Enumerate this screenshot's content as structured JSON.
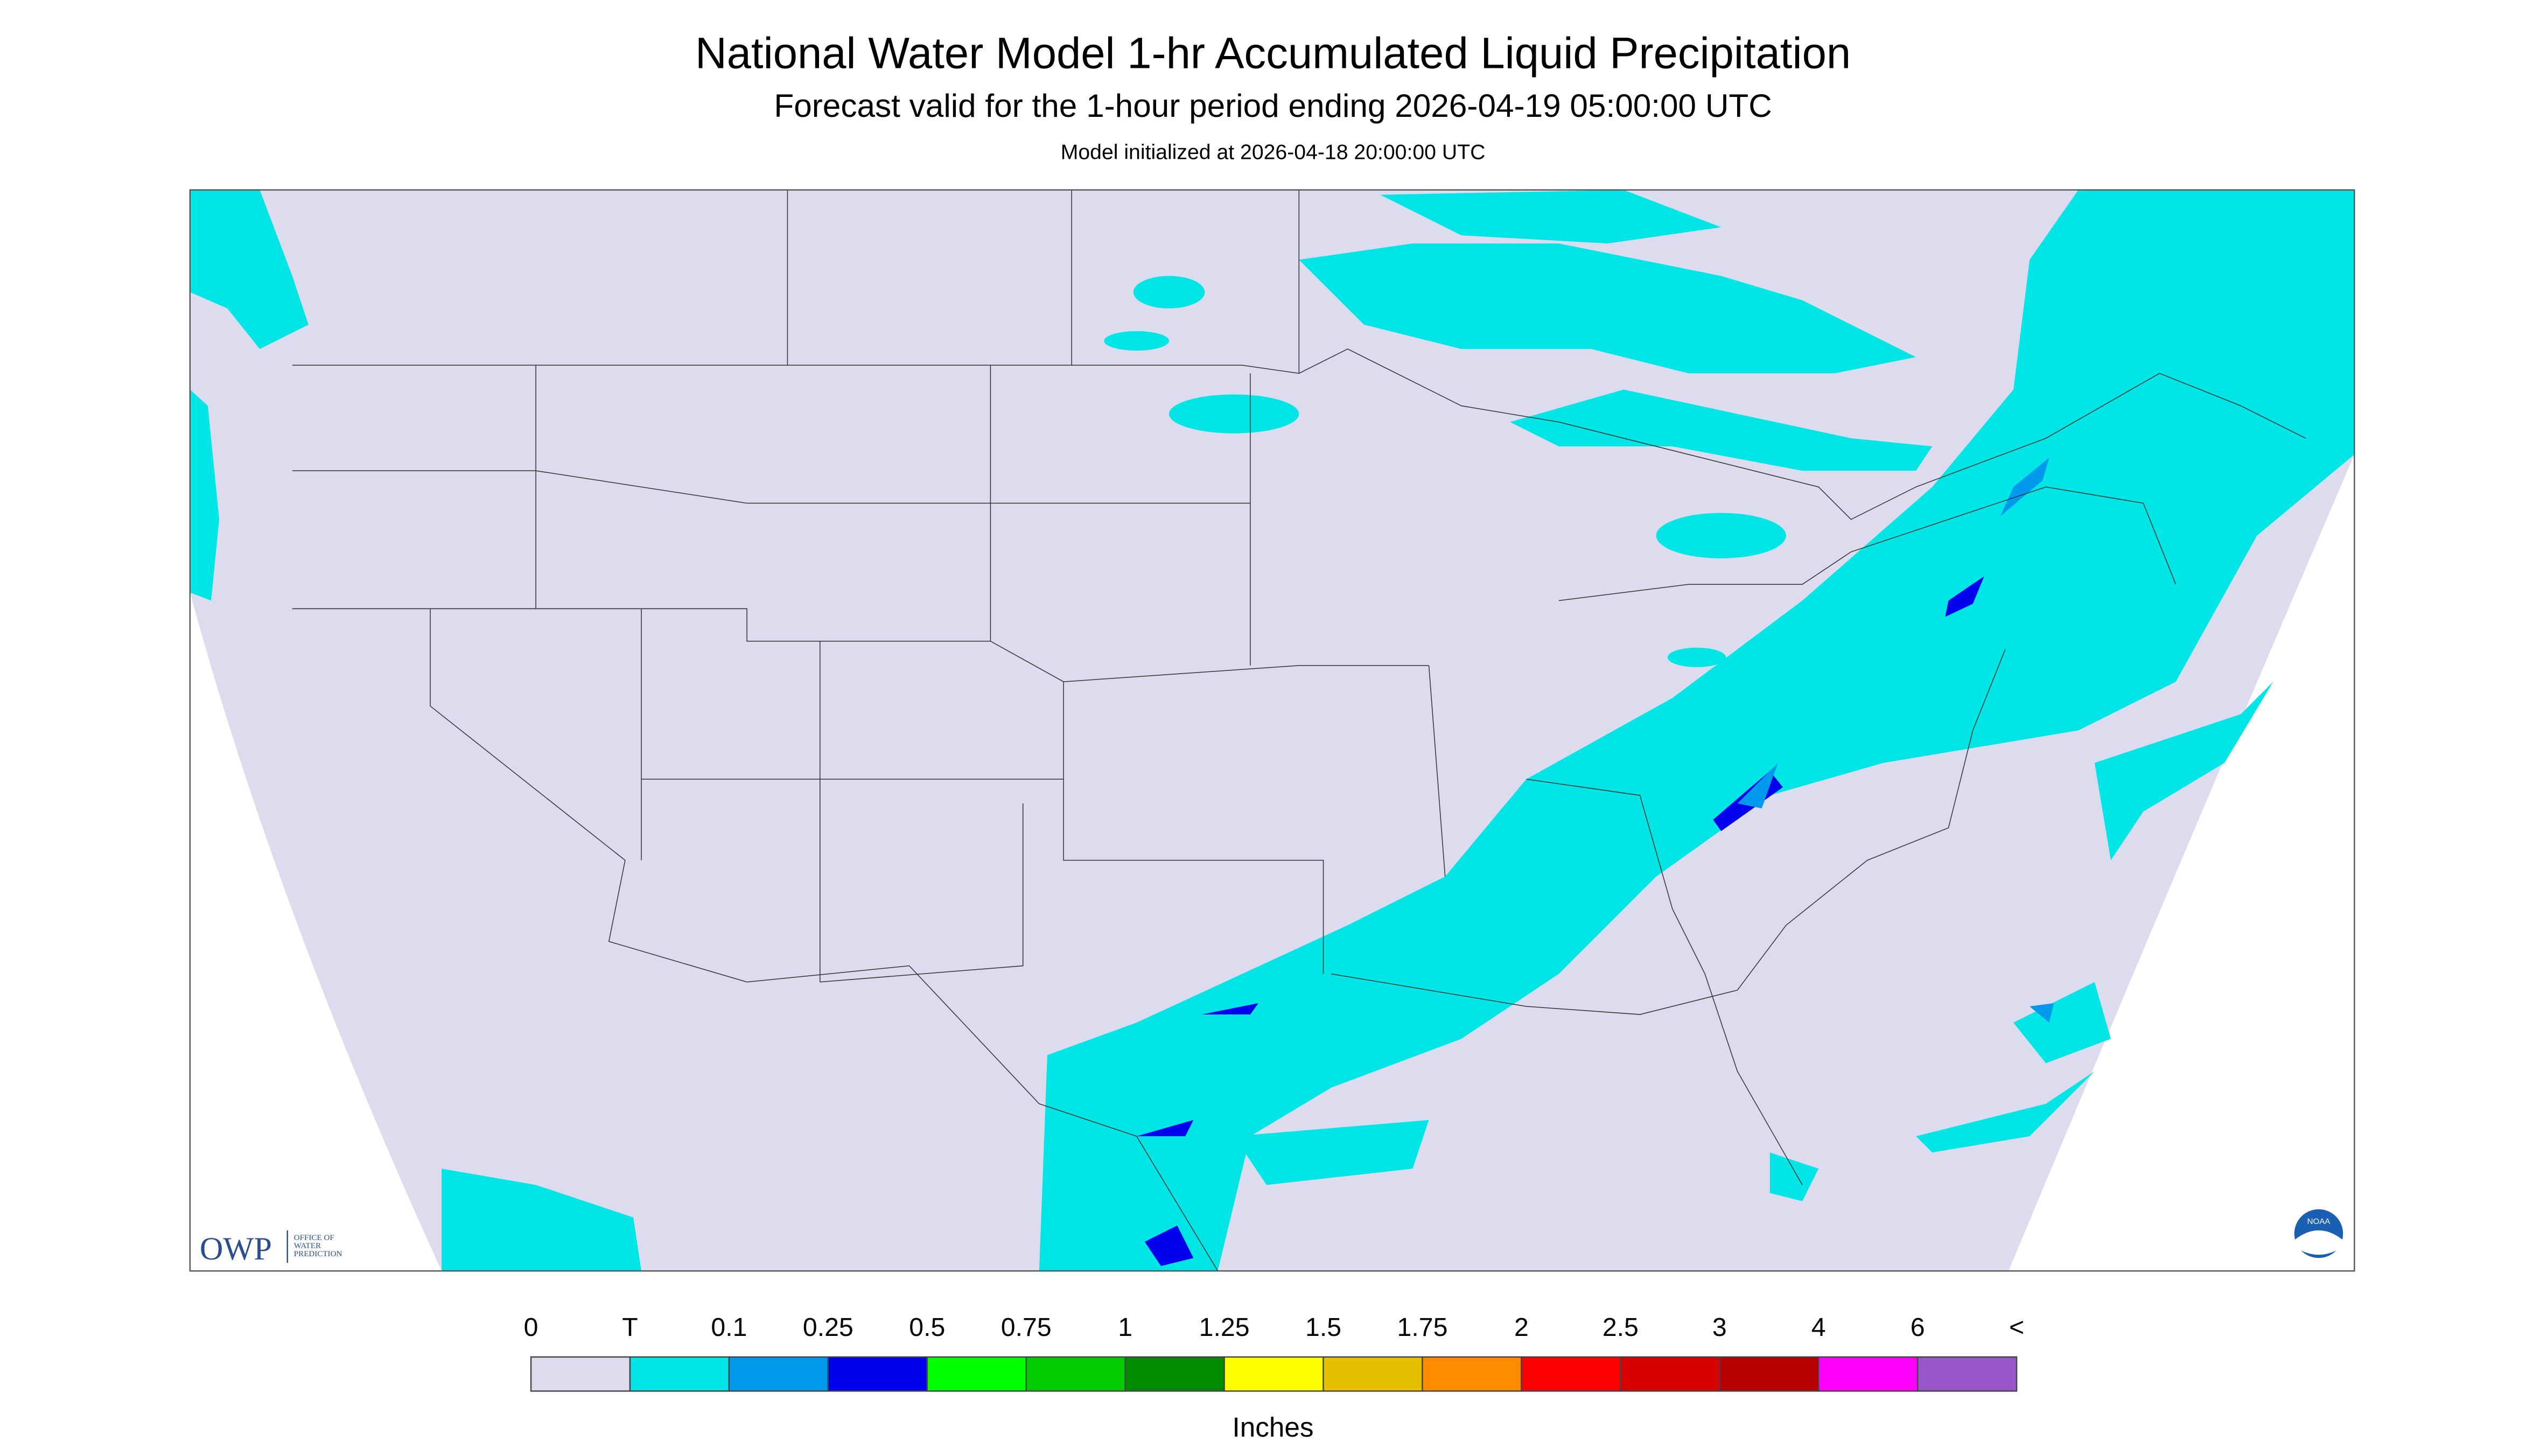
{
  "header": {
    "title": "National Water Model 1-hr Accumulated Liquid Precipitation",
    "subtitle": "Forecast valid for the 1-hour period ending 2026-04-19 05:00:00 UTC",
    "initialized": "Model initialized at 2026-04-18 20:00:00 UTC"
  },
  "legend": {
    "labels": [
      "0",
      "T",
      "0.1",
      "0.25",
      "0.5",
      "0.75",
      "1",
      "1.25",
      "1.5",
      "1.75",
      "2",
      "2.5",
      "3",
      "4",
      "6",
      "<"
    ],
    "colors": [
      "#dcdcee",
      "#00e6e6",
      "#0099ee",
      "#0000ee",
      "#00ff00",
      "#00cc00",
      "#008c00",
      "#ffff00",
      "#e6bf00",
      "#ff8c00",
      "#ff0000",
      "#d80000",
      "#b80000",
      "#ff00ff",
      "#9955cc"
    ],
    "unit": "Inches"
  },
  "logo": {
    "text": "OWP",
    "subtext": [
      "OFFICE OF",
      "WATER",
      "PREDICTION"
    ],
    "badge": "NOAA"
  }
}
